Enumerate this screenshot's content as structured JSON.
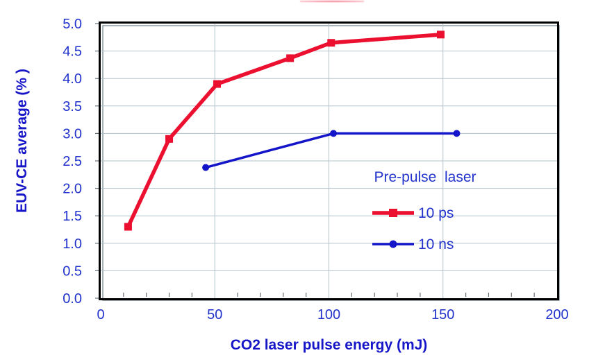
{
  "chart_data": {
    "type": "line",
    "title": "",
    "xlabel": "CO2 laser pulse energy (mJ)",
    "ylabel": "EUV-CE average (% )",
    "xlim": [
      0,
      200
    ],
    "ylim": [
      0.0,
      5.0
    ],
    "x_tick_values": [
      0,
      50,
      100,
      150,
      200
    ],
    "x_tick_labels": [
      "0",
      "50",
      "100",
      "150",
      "200"
    ],
    "x_minor_tick_step": 10,
    "y_tick_values": [
      0.0,
      0.5,
      1.0,
      1.5,
      2.0,
      2.5,
      3.0,
      3.5,
      4.0,
      4.5,
      5.0
    ],
    "y_tick_labels": [
      "0.0",
      "0.5",
      "1.0",
      "1.5",
      "2.0",
      "2.5",
      "3.0",
      "3.5",
      "4.0",
      "4.5",
      "5.0"
    ],
    "grid": {
      "on": true,
      "horizontal_at": [
        0.5,
        1.0,
        1.5,
        2.0,
        2.5,
        3.0,
        3.5,
        4.0,
        4.5
      ],
      "vertical_at": [
        50,
        100,
        150
      ],
      "color": "#b3c3cb"
    },
    "legend": {
      "title": "Pre-pulse  laser",
      "position": "inside-right-middle"
    },
    "series": [
      {
        "name": "10 ps",
        "color": "#ec1030",
        "marker": "square",
        "line_width": 5.5,
        "points": [
          [
            12,
            1.3
          ],
          [
            30,
            2.9
          ],
          [
            51,
            3.9
          ],
          [
            83,
            4.37
          ],
          [
            101,
            4.65
          ],
          [
            149,
            4.8
          ]
        ]
      },
      {
        "name": "10 ns",
        "color": "#1414c8",
        "marker": "circle",
        "line_width": 3.5,
        "points": [
          [
            46,
            2.38
          ],
          [
            102,
            3.0
          ],
          [
            156,
            3.0
          ]
        ]
      }
    ],
    "colors": {
      "tick_label": "#2233cc",
      "axis_title": "#1616c8",
      "frame": "#000000",
      "frame_shadow": "#8a99a0",
      "tick_mark": "#667077",
      "background": "#ffffff"
    }
  }
}
